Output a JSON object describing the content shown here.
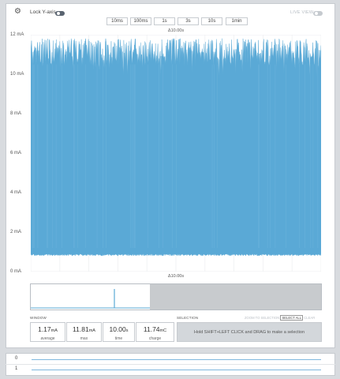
{
  "toolbar": {
    "lock_label": "Lock Y-axis",
    "live_label": "LIVE VIEW",
    "time_buttons": [
      "10ms",
      "100ms",
      "1s",
      "3s",
      "10s",
      "1min"
    ]
  },
  "chart": {
    "top_window_label": "Δ10.00s",
    "bottom_window_label": "Δ10.00s",
    "y_ticks": [
      "12 mA",
      "10 mA",
      "8 mA",
      "6 mA",
      "4 mA",
      "2 mA",
      "0 mA"
    ],
    "series_color": "#5aa9d6"
  },
  "chart_data": {
    "type": "area",
    "ylim": [
      0,
      12
    ],
    "ylabel": "",
    "xlabel": "",
    "y_ticks": [
      12,
      10,
      8,
      6,
      4,
      2,
      0
    ],
    "series": [
      {
        "values_min_mA": 0.9,
        "values_max_mA": 11.81
      }
    ]
  },
  "window": {
    "title": "WINDOW",
    "stats": [
      {
        "value": "1.17",
        "unit": "mA",
        "label": "average"
      },
      {
        "value": "11.81",
        "unit": "mA",
        "label": "max"
      },
      {
        "value": "10.00",
        "unit": "s",
        "label": "time"
      },
      {
        "value": "11.74",
        "unit": "mC",
        "label": "charge"
      }
    ]
  },
  "selection": {
    "title": "SELECTION",
    "zoom_label": "ZOOM TO SELECTION",
    "select_all_label": "SELECT ALL",
    "clear_label": "CLEAR",
    "hint": "Hold SHIFT+LEFT CLICK and DRAG to make a selection"
  },
  "channels": [
    "0",
    "1"
  ]
}
